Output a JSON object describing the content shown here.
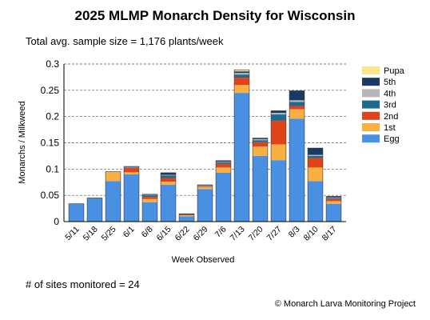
{
  "header": {
    "title": "2025 MLMP Monarch Density for Wisconsin",
    "subtitle": "Total avg. sample size = 1,176 plants/week"
  },
  "footer": {
    "sites": "# of sites monitored = 24",
    "credit": "© Monarch Larva Monitoring Project"
  },
  "chart_data": {
    "type": "bar",
    "stacked": true,
    "title": "2025 MLMP Monarch Density for Wisconsin",
    "xlabel": "Week Observed",
    "ylabel": "Monarchs / Milkweed",
    "ylim": [
      0,
      0.3
    ],
    "yticks": [
      0,
      0.05,
      0.1,
      0.15,
      0.2,
      0.25,
      0.3
    ],
    "ytick_labels": [
      "0",
      "0.05",
      "0.1",
      "0.15",
      "0.2",
      "0.25",
      "0.3"
    ],
    "grid": "horizontal dashed",
    "legend_position": "right",
    "categories": [
      "5/11",
      "5/18",
      "5/25",
      "6/1",
      "6/8",
      "6/15",
      "6/22",
      "6/29",
      "7/6",
      "7/13",
      "7/20",
      "7/27",
      "8/3",
      "8/10",
      "8/17"
    ],
    "series": [
      {
        "name": "Egg",
        "color": "#4a90e2",
        "values": [
          0.034,
          0.045,
          0.077,
          0.09,
          0.037,
          0.07,
          0.01,
          0.062,
          0.093,
          0.245,
          0.125,
          0.117,
          0.196,
          0.077,
          0.034
        ]
      },
      {
        "name": "1st",
        "color": "#f9b042",
        "values": [
          0,
          0,
          0.018,
          0.004,
          0.006,
          0.006,
          0.002,
          0.004,
          0.01,
          0.015,
          0.018,
          0.03,
          0.018,
          0.026,
          0.005
        ]
      },
      {
        "name": "2nd",
        "color": "#e0431a",
        "values": [
          0,
          0,
          0,
          0.008,
          0.004,
          0.007,
          0.001,
          0.001,
          0.007,
          0.014,
          0.008,
          0.045,
          0.006,
          0.018,
          0.004
        ]
      },
      {
        "name": "3rd",
        "color": "#1f6b8f",
        "values": [
          0,
          0,
          0,
          0.001,
          0.003,
          0.005,
          0.001,
          0.001,
          0.003,
          0.006,
          0.004,
          0.012,
          0.008,
          0.004,
          0.002
        ]
      },
      {
        "name": "4th",
        "color": "#b7b7b7",
        "values": [
          0,
          0,
          0,
          0.001,
          0.001,
          0.001,
          0,
          0.001,
          0.001,
          0.003,
          0.002,
          0.003,
          0.003,
          0.002,
          0.001
        ]
      },
      {
        "name": "5th",
        "color": "#1b3a63",
        "values": [
          0,
          0,
          0,
          0.001,
          0.001,
          0.004,
          0.001,
          0.001,
          0.002,
          0.003,
          0.002,
          0.004,
          0.018,
          0.013,
          0.002
        ]
      },
      {
        "name": "Pupa",
        "color": "#fde38a",
        "values": [
          0,
          0,
          0,
          0,
          0,
          0,
          0,
          0,
          0,
          0.003,
          0,
          0,
          0,
          0,
          0
        ]
      }
    ]
  }
}
